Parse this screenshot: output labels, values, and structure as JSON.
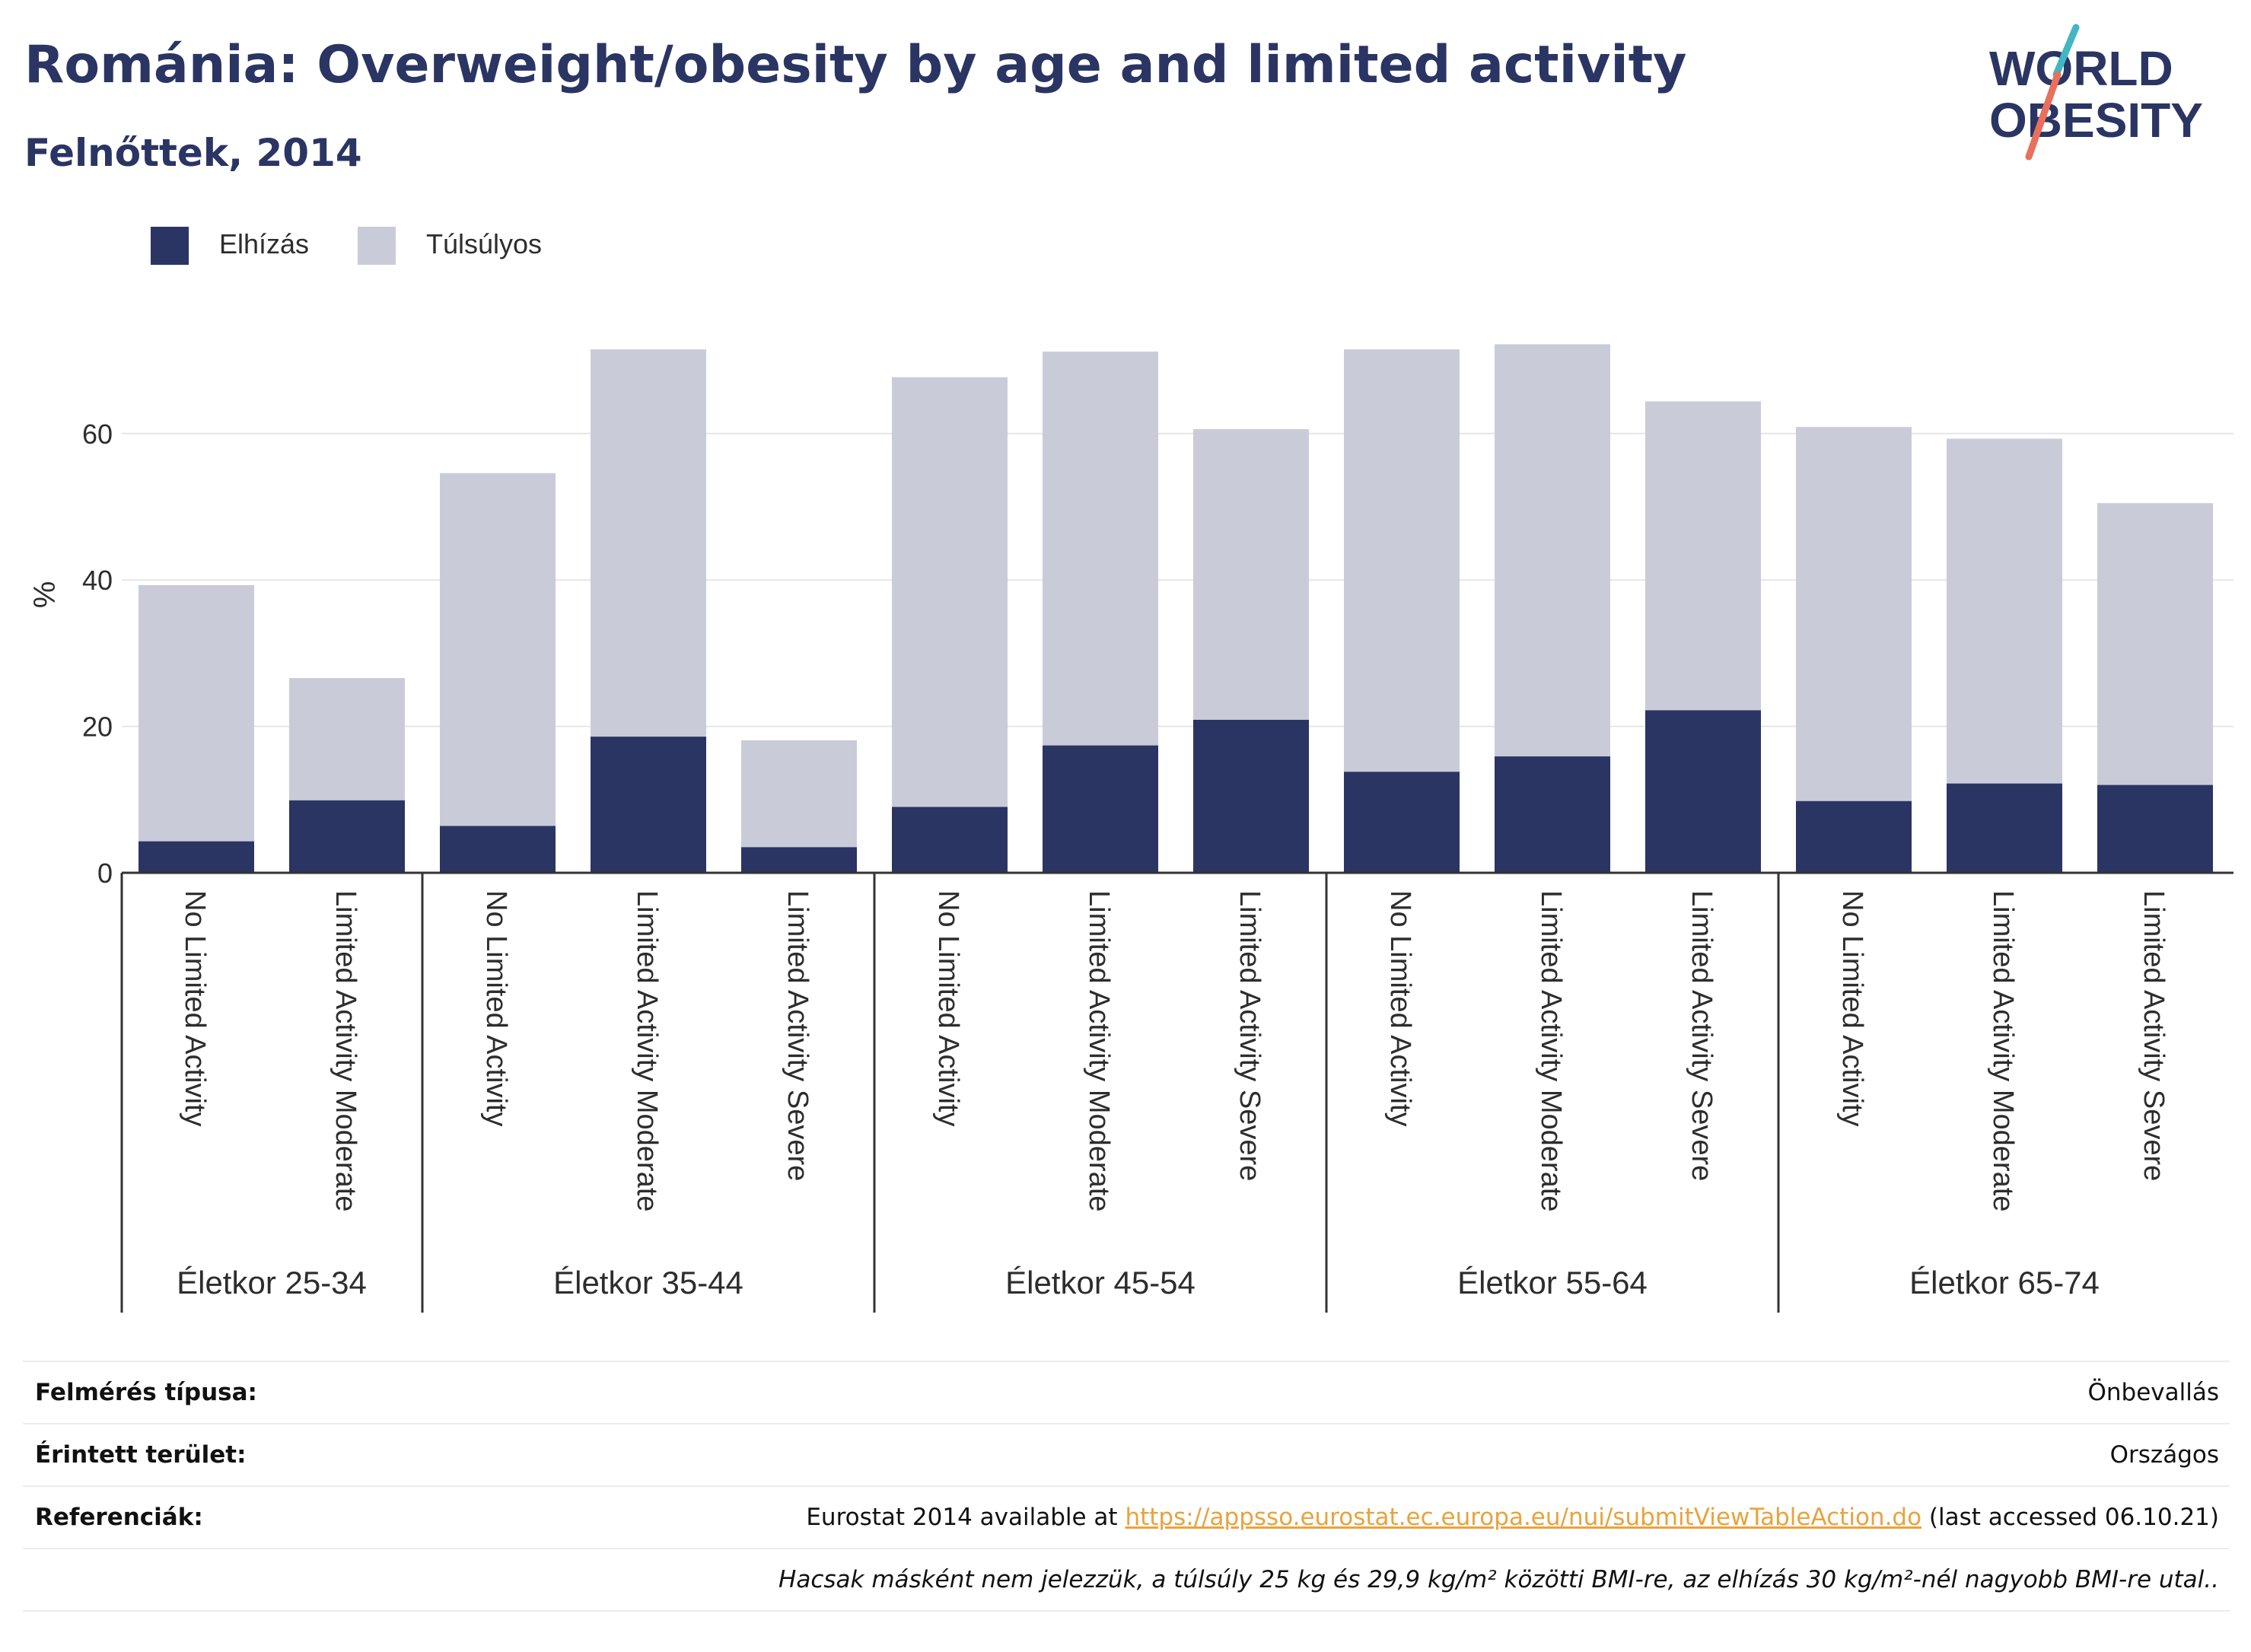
{
  "title": "Románia: Overweight/obesity by age and limited activity",
  "subtitle": "Felnőttek, 2014",
  "logo": {
    "line1": "WORLD",
    "line2": "OBESITY",
    "colors": {
      "text": "#2a3563",
      "slash_top": "#41b6c4",
      "slash_bottom": "#e8705c"
    }
  },
  "colors": {
    "obesity": "#2a3563",
    "overweight": "#c9ccd8",
    "axis": "#333333",
    "grid": "#e6e6e6"
  },
  "legend": [
    {
      "label": "Elhízás",
      "color": "#2a3563"
    },
    {
      "label": "Túlsúlyos",
      "color": "#c9ccd8"
    }
  ],
  "chart_data": {
    "type": "bar",
    "stacked": true,
    "ylabel": "%",
    "ylim": [
      0,
      75
    ],
    "yticks": [
      0,
      20,
      40,
      60
    ],
    "grid": true,
    "legend_position": "top-left",
    "groups": [
      {
        "label": "Életkor 25-34",
        "categories": [
          "No Limited Activity",
          "Limited Activity Moderate"
        ]
      },
      {
        "label": "Életkor 35-44",
        "categories": [
          "No Limited Activity",
          "Limited Activity Moderate",
          "Limited Activity Severe"
        ]
      },
      {
        "label": "Életkor 45-54",
        "categories": [
          "No Limited Activity",
          "Limited Activity Moderate",
          "Limited Activity Severe"
        ]
      },
      {
        "label": "Életkor 55-64",
        "categories": [
          "No Limited Activity",
          "Limited Activity Moderate",
          "Limited Activity Severe"
        ]
      },
      {
        "label": "Életkor 65-74",
        "categories": [
          "No Limited Activity",
          "Limited Activity Moderate",
          "Limited Activity Severe"
        ]
      }
    ],
    "series": [
      {
        "name": "Elhízás",
        "values": [
          4.3,
          9.9,
          6.4,
          18.6,
          3.5,
          9.0,
          17.4,
          20.9,
          13.8,
          15.9,
          22.2,
          9.8,
          12.2,
          12.0
        ]
      },
      {
        "name": "Túlsúlyos",
        "values": [
          35.0,
          16.7,
          48.2,
          52.9,
          14.6,
          58.7,
          53.8,
          39.7,
          57.7,
          56.3,
          42.2,
          51.1,
          47.1,
          38.5
        ]
      }
    ]
  },
  "meta": {
    "survey_type_label": "Felmérés típusa:",
    "survey_type_value": "Önbevallás",
    "area_label": "Érintett terület:",
    "area_value": "Országos",
    "references_label": "Referenciák:",
    "references_prefix": "Eurostat 2014 available at ",
    "references_link": "https://appsso.eurostat.ec.europa.eu/nui/submitViewTableAction.do",
    "references_suffix": " (last accessed 06.10.21)",
    "note": "Hacsak másként nem jelezzük, a túlsúly 25 kg és 29,9 kg/m² közötti BMI-re, az elhízás 30 kg/m²-nél nagyobb BMI-re utal.."
  }
}
